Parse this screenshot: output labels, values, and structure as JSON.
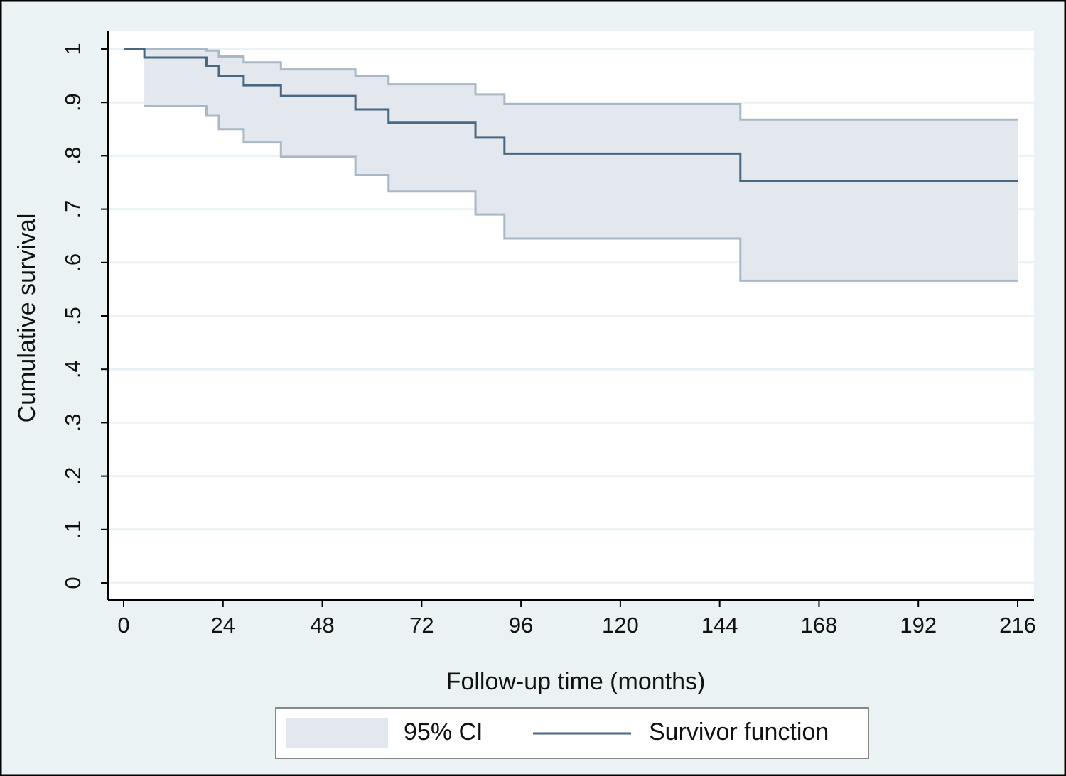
{
  "chart_data": {
    "type": "step",
    "x_label": "Follow-up time (months)",
    "y_label": "Cumulative survival",
    "x": [
      0,
      5,
      20,
      23,
      29,
      38,
      56,
      64,
      85,
      92,
      149,
      216
    ],
    "series": [
      {
        "name": "95% CI",
        "color": "#e3e8ee",
        "edge_color": "#a9b8c6",
        "lower": [
          null,
          0.893,
          0.875,
          0.85,
          0.825,
          0.798,
          0.764,
          0.733,
          0.69,
          0.645,
          0.566,
          0.566
        ],
        "upper": [
          null,
          1,
          0.997,
          0.986,
          0.975,
          0.962,
          0.95,
          0.934,
          0.915,
          0.897,
          0.868,
          0.868
        ]
      },
      {
        "name": "Survivor function",
        "color": "#4a6780",
        "values": [
          1,
          0.984,
          0.968,
          0.95,
          0.932,
          0.912,
          0.887,
          0.862,
          0.834,
          0.804,
          0.752,
          0.752
        ]
      }
    ],
    "xlim": [
      0,
      216
    ],
    "xticks": [
      0,
      24,
      48,
      72,
      96,
      120,
      144,
      168,
      192,
      216
    ],
    "ylim": [
      0,
      1
    ],
    "yticks": [
      0,
      {
        "value": 0.1,
        "label": ".1"
      },
      {
        "value": 0.2,
        "label": ".2"
      },
      {
        "value": 0.3,
        "label": ".3"
      },
      {
        "value": 0.4,
        "label": ".4"
      },
      {
        "value": 0.5,
        "label": ".5"
      },
      {
        "value": 0.6,
        "label": ".6"
      },
      {
        "value": 0.7,
        "label": ".7"
      },
      {
        "value": 0.8,
        "label": ".8"
      },
      {
        "value": 0.9,
        "label": ".9"
      },
      1
    ],
    "grid": true,
    "legend": "bottom"
  }
}
